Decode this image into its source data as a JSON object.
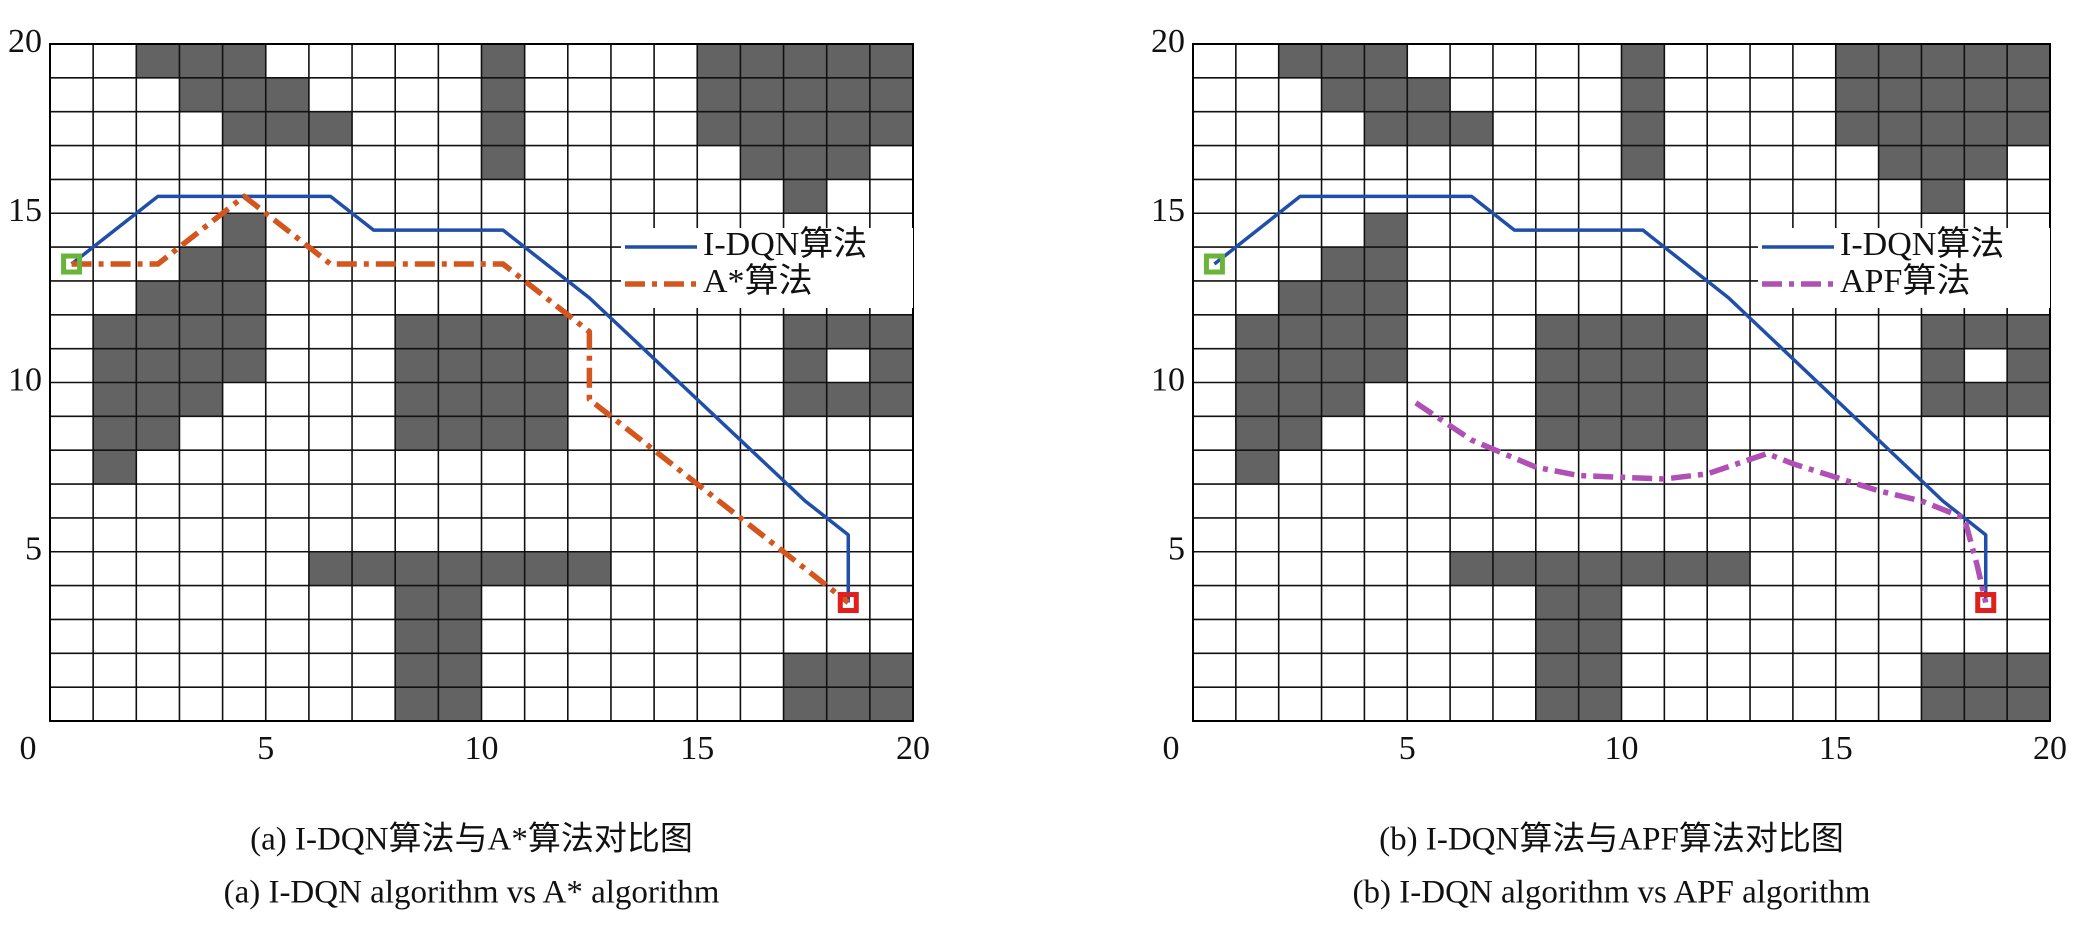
{
  "chart_data": [
    {
      "type": "grid_path",
      "caption": "(a) I-DQN算法与A*算法对比图",
      "caption_en": "(a) I-DQN algorithm vs A* algorithm",
      "xlim": [
        0,
        20
      ],
      "ylim": [
        0,
        20
      ],
      "xticks": [
        0,
        5,
        10,
        15,
        20
      ],
      "yticks": [
        5,
        10,
        15,
        20
      ],
      "cell_size": 1,
      "legend": "upper right",
      "obstacle_color": "#636363",
      "obstacles": [
        [
          2,
          5,
          19
        ],
        [
          10,
          11,
          19
        ],
        [
          15,
          20,
          19
        ],
        [
          3,
          6,
          18
        ],
        [
          10,
          11,
          18
        ],
        [
          15,
          20,
          18
        ],
        [
          4,
          7,
          17
        ],
        [
          10,
          11,
          17
        ],
        [
          15,
          20,
          17
        ],
        [
          10,
          11,
          16
        ],
        [
          16,
          19,
          16
        ],
        [
          17,
          18,
          15
        ],
        [
          4,
          5,
          14
        ],
        [
          3,
          5,
          13
        ],
        [
          2,
          5,
          12
        ],
        [
          1,
          5,
          11
        ],
        [
          8,
          12,
          11
        ],
        [
          17,
          20,
          11
        ],
        [
          1,
          5,
          10
        ],
        [
          8,
          12,
          10
        ],
        [
          17,
          18,
          10
        ],
        [
          19,
          20,
          10
        ],
        [
          1,
          4,
          9
        ],
        [
          8,
          12,
          9
        ],
        [
          17,
          20,
          9
        ],
        [
          1,
          3,
          8
        ],
        [
          8,
          12,
          8
        ],
        [
          1,
          2,
          7
        ],
        [
          6,
          13,
          4
        ],
        [
          8,
          10,
          3
        ],
        [
          8,
          10,
          2
        ],
        [
          8,
          10,
          1
        ],
        [
          17,
          20,
          1
        ],
        [
          8,
          10,
          0
        ],
        [
          17,
          20,
          0
        ]
      ],
      "start": {
        "x": 0.5,
        "y": 13.5,
        "color": "#6ab43c"
      },
      "goal": {
        "x": 18.5,
        "y": 3.5,
        "color": "#e0201c"
      },
      "series": [
        {
          "name": "I-DQN算法",
          "color": "#1f4fa8",
          "style": "solid",
          "x": [
            0.5,
            2.5,
            6.5,
            7.5,
            10.5,
            12.5,
            17.5,
            18.5,
            18.5
          ],
          "values": [
            13.5,
            15.5,
            15.5,
            14.5,
            14.5,
            12.5,
            6.5,
            5.5,
            3.5
          ]
        },
        {
          "name": "A*算法",
          "color": "#d4561e",
          "style": "dashdot",
          "x": [
            0.5,
            2.5,
            4.5,
            6.5,
            10.5,
            12.5,
            12.5,
            18.5
          ],
          "values": [
            13.5,
            13.5,
            15.5,
            13.5,
            13.5,
            11.5,
            9.5,
            3.5
          ]
        }
      ]
    },
    {
      "type": "grid_path",
      "caption": "(b) I-DQN算法与APF算法对比图",
      "caption_en": "(b) I-DQN algorithm vs APF algorithm",
      "xlim": [
        0,
        20
      ],
      "ylim": [
        0,
        20
      ],
      "xticks": [
        0,
        5,
        10,
        15,
        20
      ],
      "yticks": [
        5,
        10,
        15,
        20
      ],
      "cell_size": 1,
      "legend": "upper right",
      "obstacle_color": "#636363",
      "obstacles": [
        [
          2,
          5,
          19
        ],
        [
          10,
          11,
          19
        ],
        [
          15,
          20,
          19
        ],
        [
          3,
          6,
          18
        ],
        [
          10,
          11,
          18
        ],
        [
          15,
          20,
          18
        ],
        [
          4,
          7,
          17
        ],
        [
          10,
          11,
          17
        ],
        [
          15,
          20,
          17
        ],
        [
          10,
          11,
          16
        ],
        [
          16,
          19,
          16
        ],
        [
          17,
          18,
          15
        ],
        [
          4,
          5,
          14
        ],
        [
          3,
          5,
          13
        ],
        [
          2,
          5,
          12
        ],
        [
          1,
          5,
          11
        ],
        [
          8,
          12,
          11
        ],
        [
          17,
          20,
          11
        ],
        [
          1,
          5,
          10
        ],
        [
          8,
          12,
          10
        ],
        [
          17,
          18,
          10
        ],
        [
          19,
          20,
          10
        ],
        [
          1,
          4,
          9
        ],
        [
          8,
          12,
          9
        ],
        [
          17,
          20,
          9
        ],
        [
          1,
          3,
          8
        ],
        [
          8,
          12,
          8
        ],
        [
          1,
          2,
          7
        ],
        [
          6,
          13,
          4
        ],
        [
          8,
          10,
          3
        ],
        [
          8,
          10,
          2
        ],
        [
          8,
          10,
          1
        ],
        [
          17,
          20,
          1
        ],
        [
          8,
          10,
          0
        ],
        [
          17,
          20,
          0
        ]
      ],
      "start": {
        "x": 0.5,
        "y": 13.5,
        "color": "#6ab43c"
      },
      "goal": {
        "x": 18.5,
        "y": 3.5,
        "color": "#e0201c"
      },
      "series": [
        {
          "name": "I-DQN算法",
          "color": "#1f4fa8",
          "style": "solid",
          "x": [
            0.5,
            2.5,
            6.5,
            7.5,
            10.5,
            12.5,
            17.5,
            18.5,
            18.5
          ],
          "values": [
            13.5,
            15.5,
            15.5,
            14.5,
            14.5,
            12.5,
            6.5,
            5.5,
            3.5
          ]
        },
        {
          "name": "APF算法",
          "color": "#b04fb4",
          "style": "dashdot",
          "x": [
            5.2,
            6.5,
            8,
            9,
            10,
            11,
            12,
            13.4,
            14,
            15,
            16,
            17,
            18,
            18.3,
            18.5
          ],
          "values": [
            9.4,
            8.3,
            7.5,
            7.25,
            7.2,
            7.15,
            7.3,
            7.9,
            7.6,
            7.2,
            6.8,
            6.5,
            6,
            4.6,
            3.5
          ]
        }
      ]
    }
  ]
}
